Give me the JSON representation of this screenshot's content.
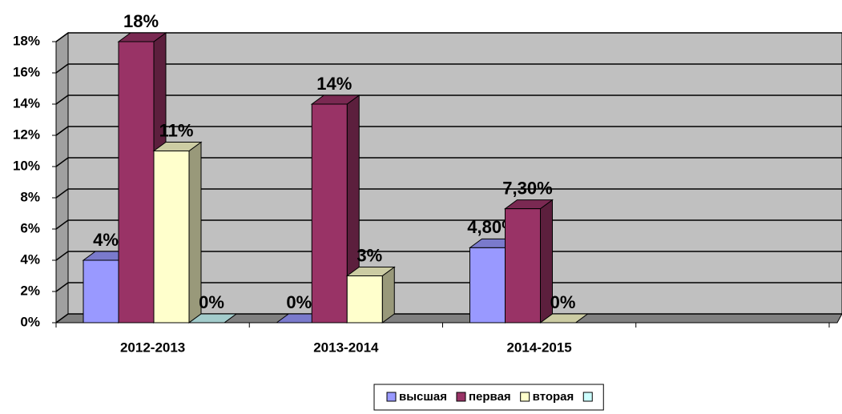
{
  "chart_data": {
    "type": "bar3d",
    "categories": [
      "2012-2013",
      "2013-2014",
      "2014-2015",
      null
    ],
    "series": [
      {
        "name": "высшая",
        "color": "#9999ff",
        "values": [
          4,
          0,
          4.8,
          null
        ],
        "value_labels": [
          "4%",
          "0%",
          "4,80%",
          null
        ]
      },
      {
        "name": "первая",
        "color": "#993366",
        "values": [
          18,
          14,
          7.3,
          null
        ],
        "value_labels": [
          "18%",
          "14%",
          "7,30%",
          null
        ]
      },
      {
        "name": "вторая",
        "color": "#ffffcc",
        "values": [
          11,
          3,
          0,
          null
        ],
        "value_labels": [
          "11%",
          "3%",
          "0%",
          null
        ]
      },
      {
        "color": "#ccffff",
        "values": [
          0,
          null,
          null,
          null
        ],
        "value_labels": [
          "0%",
          null,
          null,
          null
        ]
      }
    ],
    "ylim": [
      0,
      18
    ],
    "yticks": [
      {
        "value": 0,
        "label": "0%"
      },
      {
        "value": 2,
        "label": "2%"
      },
      {
        "value": 4,
        "label": "4%"
      },
      {
        "value": 6,
        "label": "6%"
      },
      {
        "value": 8,
        "label": "8%"
      },
      {
        "value": 10,
        "label": "10%"
      },
      {
        "value": 12,
        "label": "12%"
      },
      {
        "value": 14,
        "label": "14%"
      },
      {
        "value": 16,
        "label": "16%"
      },
      {
        "value": 18,
        "label": "18%"
      }
    ],
    "grid": true,
    "legend": "bottom"
  }
}
